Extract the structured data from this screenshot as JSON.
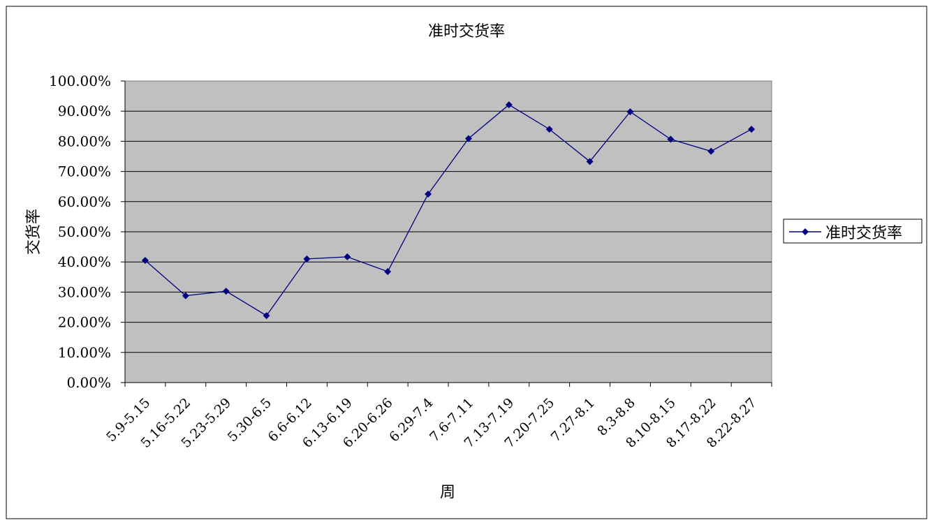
{
  "chart_data": {
    "type": "line",
    "title": "准时交货率",
    "xlabel": "周",
    "ylabel": "交货率",
    "categories": [
      "5.9-5.15",
      "5.16-5.22",
      "5.23-5.29",
      "5.30-6.5",
      "6.6-6.12",
      "6.13-6.19",
      "6.20-6.26",
      "6.29-7.4",
      "7.6-7.11",
      "7.13-7.19",
      "7.20-7.25",
      "7.27-8.1",
      "8.3-8.8",
      "8.10-8.15",
      "8.17-8.22",
      "8.22-8.27"
    ],
    "series": [
      {
        "name": "准时交货率",
        "values": [
          40.5,
          28.8,
          30.3,
          22.2,
          41.0,
          41.7,
          36.8,
          62.5,
          80.9,
          92.1,
          84.0,
          73.3,
          89.8,
          80.7,
          76.7,
          84.0
        ],
        "color": "#000080"
      }
    ],
    "ylim": [
      0,
      100
    ],
    "yticks": [
      "0.00%",
      "10.00%",
      "20.00%",
      "30.00%",
      "40.00%",
      "50.00%",
      "60.00%",
      "70.00%",
      "80.00%",
      "90.00%",
      "100.00%"
    ],
    "grid": true,
    "plot_background": "#c0c0c0",
    "legend_position": "right"
  }
}
